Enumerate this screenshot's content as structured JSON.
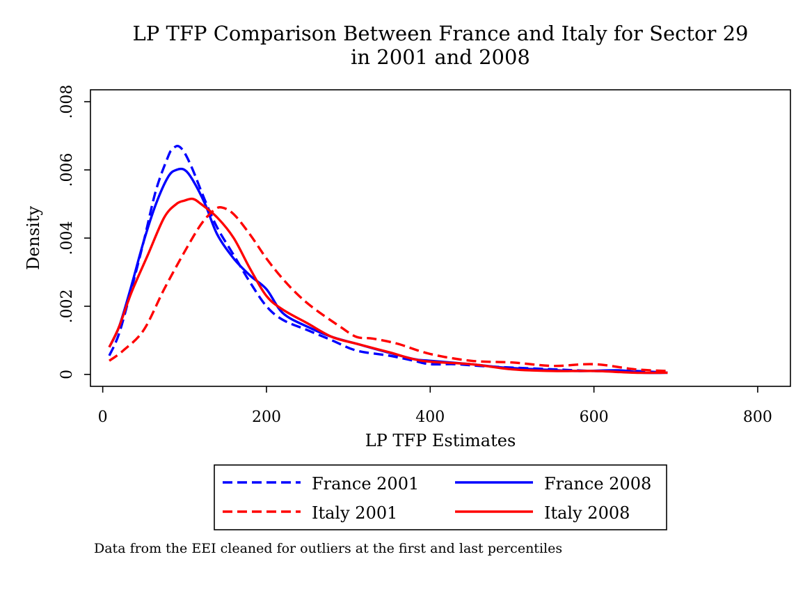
{
  "title_lines": [
    "LP TFP Comparison Between France and Italy for Sector 29",
    "in 2001 and 2008"
  ],
  "note": "Data from the EEI cleaned for outliers at the first and last percentiles",
  "colors": {
    "blue": "#0000ff",
    "red": "#ff0000"
  },
  "chart_data": {
    "type": "line",
    "xlabel": "LP TFP Estimates",
    "ylabel": "Density",
    "xlim": [
      -15,
      840
    ],
    "ylim": [
      -0.00035,
      0.00835
    ],
    "xticks": [
      0,
      200,
      400,
      600,
      800
    ],
    "xtick_labels": [
      "0",
      "200",
      "400",
      "600",
      "800"
    ],
    "yticks": [
      0,
      0.002,
      0.004,
      0.006,
      0.008
    ],
    "ytick_labels": [
      "0",
      ".002",
      ".004",
      ".006",
      ".008"
    ],
    "grid": false,
    "legend_position": "bottom",
    "series": [
      {
        "name": "France 2001",
        "color": "#0000ff",
        "dash": "dashed",
        "points": [
          [
            8,
            0.00055
          ],
          [
            20,
            0.0012
          ],
          [
            35,
            0.0025
          ],
          [
            50,
            0.0039
          ],
          [
            65,
            0.0054
          ],
          [
            80,
            0.0064
          ],
          [
            85,
            0.0066
          ],
          [
            92,
            0.0067
          ],
          [
            100,
            0.0065
          ],
          [
            110,
            0.006
          ],
          [
            125,
            0.0051
          ],
          [
            140,
            0.0043
          ],
          [
            160,
            0.0035
          ],
          [
            180,
            0.0027
          ],
          [
            200,
            0.002
          ],
          [
            220,
            0.0016
          ],
          [
            250,
            0.0013
          ],
          [
            280,
            0.001
          ],
          [
            310,
            0.0007
          ],
          [
            350,
            0.00055
          ],
          [
            380,
            0.0004
          ],
          [
            400,
            0.0003
          ],
          [
            430,
            0.0003
          ],
          [
            460,
            0.00025
          ],
          [
            500,
            0.0002
          ],
          [
            550,
            0.00015
          ],
          [
            600,
            0.0001
          ],
          [
            650,
            0.0001
          ],
          [
            690,
            5e-05
          ]
        ]
      },
      {
        "name": "France 2008",
        "color": "#0000ff",
        "dash": "solid",
        "points": [
          [
            8,
            0.0008
          ],
          [
            20,
            0.0014
          ],
          [
            35,
            0.0026
          ],
          [
            50,
            0.0039
          ],
          [
            65,
            0.005
          ],
          [
            80,
            0.0058
          ],
          [
            90,
            0.006
          ],
          [
            100,
            0.006
          ],
          [
            110,
            0.0057
          ],
          [
            125,
            0.005
          ],
          [
            140,
            0.0041
          ],
          [
            160,
            0.0034
          ],
          [
            180,
            0.0029
          ],
          [
            200,
            0.0025
          ],
          [
            220,
            0.0018
          ],
          [
            250,
            0.0014
          ],
          [
            280,
            0.0011
          ],
          [
            310,
            0.0009
          ],
          [
            340,
            0.0007
          ],
          [
            380,
            0.00045
          ],
          [
            400,
            0.0004
          ],
          [
            450,
            0.0003
          ],
          [
            490,
            0.0002
          ],
          [
            530,
            0.00015
          ],
          [
            580,
            0.0001
          ],
          [
            630,
            0.00012
          ],
          [
            660,
            5e-05
          ],
          [
            690,
            5e-05
          ]
        ]
      },
      {
        "name": "Italy 2001",
        "color": "#ff0000",
        "dash": "dashed",
        "points": [
          [
            8,
            0.0004
          ],
          [
            25,
            0.0007
          ],
          [
            50,
            0.0013
          ],
          [
            75,
            0.0025
          ],
          [
            100,
            0.0036
          ],
          [
            120,
            0.0044
          ],
          [
            135,
            0.0048
          ],
          [
            145,
            0.0049
          ],
          [
            160,
            0.0047
          ],
          [
            180,
            0.0041
          ],
          [
            200,
            0.0034
          ],
          [
            220,
            0.0028
          ],
          [
            240,
            0.0023
          ],
          [
            260,
            0.0019
          ],
          [
            290,
            0.0014
          ],
          [
            310,
            0.0011
          ],
          [
            330,
            0.00105
          ],
          [
            360,
            0.0009
          ],
          [
            400,
            0.0006
          ],
          [
            450,
            0.0004
          ],
          [
            500,
            0.00035
          ],
          [
            550,
            0.00025
          ],
          [
            600,
            0.0003
          ],
          [
            650,
            0.00015
          ],
          [
            690,
            0.0001
          ]
        ]
      },
      {
        "name": "Italy 2008",
        "color": "#ff0000",
        "dash": "solid",
        "points": [
          [
            8,
            0.0008
          ],
          [
            20,
            0.0014
          ],
          [
            35,
            0.0024
          ],
          [
            55,
            0.0035
          ],
          [
            75,
            0.0046
          ],
          [
            90,
            0.005
          ],
          [
            100,
            0.0051
          ],
          [
            110,
            0.00515
          ],
          [
            120,
            0.005
          ],
          [
            140,
            0.0046
          ],
          [
            160,
            0.004
          ],
          [
            180,
            0.0031
          ],
          [
            200,
            0.0023
          ],
          [
            220,
            0.0019
          ],
          [
            250,
            0.0015
          ],
          [
            280,
            0.0011
          ],
          [
            310,
            0.0009
          ],
          [
            350,
            0.00065
          ],
          [
            390,
            0.0004
          ],
          [
            450,
            0.0003
          ],
          [
            500,
            0.00015
          ],
          [
            550,
            0.0001
          ],
          [
            600,
            0.0001
          ],
          [
            650,
            5e-05
          ],
          [
            690,
            5e-05
          ]
        ]
      }
    ]
  }
}
